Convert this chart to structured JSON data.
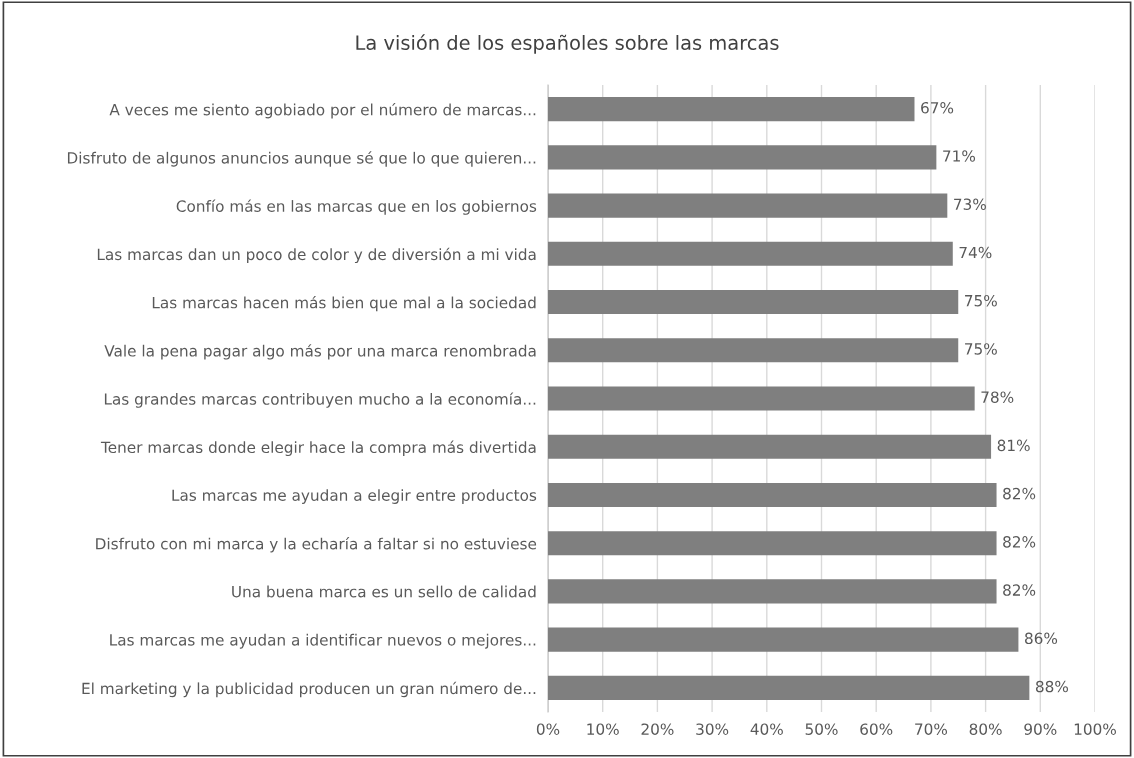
{
  "chart_data": {
    "type": "bar",
    "orientation": "horizontal",
    "title": "La visión de los españoles sobre las marcas",
    "categories": [
      "A veces me siento agobiado por el número de marcas...",
      "Disfruto de algunos anuncios aunque sé que lo que quieren...",
      "Confío más en las marcas que en los gobiernos",
      "Las marcas dan un poco de color y de diversión a mi vida",
      "Las marcas hacen más bien que mal a la sociedad",
      "Vale la pena pagar algo más por una marca renombrada",
      "Las grandes marcas contribuyen mucho a la economía...",
      "Tener marcas donde elegir hace la compra más divertida",
      "Las marcas me ayudan a elegir entre productos",
      "Disfruto con mi marca y la echaría a faltar si no estuviese",
      "Una buena marca es un sello de calidad",
      "Las marcas me ayudan a identificar nuevos o mejores...",
      "El marketing y la publicidad producen un gran número de..."
    ],
    "values": [
      67,
      71,
      73,
      74,
      75,
      75,
      78,
      81,
      82,
      82,
      82,
      86,
      88
    ],
    "value_labels": [
      "67%",
      "71%",
      "73%",
      "74%",
      "75%",
      "75%",
      "78%",
      "81%",
      "82%",
      "82%",
      "82%",
      "86%",
      "88%"
    ],
    "color": "#7f7f7f",
    "xlim": [
      0,
      100
    ],
    "xticks": [
      {
        "value": 0,
        "label": "0%"
      },
      {
        "value": 10,
        "label": "10%"
      },
      {
        "value": 20,
        "label": "20%"
      },
      {
        "value": 30,
        "label": "30%"
      },
      {
        "value": 40,
        "label": "40%"
      },
      {
        "value": 50,
        "label": "50%"
      },
      {
        "value": 60,
        "label": "60%"
      },
      {
        "value": 70,
        "label": "70%"
      },
      {
        "value": 80,
        "label": "80%"
      },
      {
        "value": 90,
        "label": "90%"
      },
      {
        "value": 100,
        "label": "100%"
      }
    ],
    "grid": "x"
  }
}
